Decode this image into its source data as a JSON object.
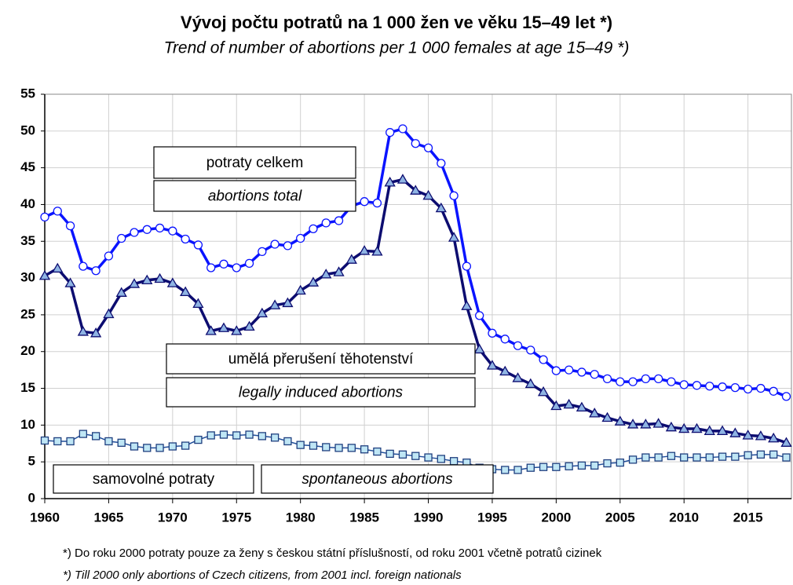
{
  "chart_data": {
    "type": "line",
    "title": "Vývoj počtu potratů na 1 000 žen ve věku 15–49 let *)",
    "subtitle": "Trend of number of abortions per 1 000 females at age 15–49 *)",
    "x": [
      1960,
      1961,
      1962,
      1963,
      1964,
      1965,
      1966,
      1967,
      1968,
      1969,
      1970,
      1971,
      1972,
      1973,
      1974,
      1975,
      1976,
      1977,
      1978,
      1979,
      1980,
      1981,
      1982,
      1983,
      1984,
      1985,
      1986,
      1987,
      1988,
      1989,
      1990,
      1991,
      1992,
      1993,
      1994,
      1995,
      1996,
      1997,
      1998,
      1999,
      2000,
      2001,
      2002,
      2003,
      2004,
      2005,
      2006,
      2007,
      2008,
      2009,
      2010,
      2011,
      2012,
      2013,
      2014,
      2015,
      2016,
      2017,
      2018
    ],
    "series": [
      {
        "name": "potraty celkem",
        "color": "#0a14ff",
        "values": [
          38.3,
          39.1,
          37.1,
          31.6,
          31.0,
          33.0,
          35.4,
          36.2,
          36.6,
          36.8,
          36.4,
          35.3,
          34.5,
          31.4,
          31.9,
          31.4,
          32.0,
          33.6,
          34.6,
          34.4,
          35.4,
          36.7,
          37.5,
          37.8,
          39.8,
          40.4,
          40.2,
          49.8,
          50.3,
          48.3,
          47.7,
          45.6,
          41.2,
          31.6,
          24.9,
          22.5,
          21.7,
          20.8,
          20.2,
          18.9,
          17.4,
          17.5,
          17.2,
          16.9,
          16.3,
          15.9,
          15.9,
          16.3,
          16.3,
          15.9,
          15.5,
          15.4,
          15.3,
          15.2,
          15.1,
          14.9,
          15.0,
          14.6,
          13.9
        ]
      },
      {
        "name": "umělá přerušení těhotenství",
        "color": "#0c0c70",
        "values": [
          30.3,
          31.3,
          29.3,
          22.7,
          22.5,
          25.1,
          28.0,
          29.2,
          29.7,
          29.9,
          29.3,
          28.1,
          26.5,
          22.8,
          23.2,
          22.8,
          23.4,
          25.2,
          26.3,
          26.6,
          28.3,
          29.4,
          30.5,
          30.8,
          32.5,
          33.7,
          33.6,
          43.0,
          43.4,
          41.9,
          41.2,
          39.5,
          35.5,
          26.2,
          20.3,
          18.1,
          17.3,
          16.4,
          15.6,
          14.5,
          12.6,
          12.8,
          12.4,
          11.6,
          11.0,
          10.5,
          10.1,
          10.1,
          10.2,
          9.7,
          9.5,
          9.5,
          9.2,
          9.2,
          8.9,
          8.6,
          8.5,
          8.2,
          7.6
        ]
      },
      {
        "name": "samovolné potraty",
        "color": "#1f4e9a",
        "values": [
          7.9,
          7.8,
          7.8,
          8.8,
          8.5,
          7.8,
          7.6,
          7.1,
          6.9,
          6.9,
          7.1,
          7.2,
          8.0,
          8.6,
          8.7,
          8.6,
          8.7,
          8.5,
          8.3,
          7.8,
          7.3,
          7.2,
          7.0,
          6.9,
          6.9,
          6.7,
          6.4,
          6.1,
          6.0,
          5.8,
          5.6,
          5.4,
          5.1,
          4.9,
          4.2,
          4.0,
          3.9,
          3.9,
          4.2,
          4.3,
          4.3,
          4.4,
          4.5,
          4.5,
          4.8,
          4.9,
          5.3,
          5.6,
          5.6,
          5.8,
          5.6,
          5.6,
          5.6,
          5.7,
          5.7,
          5.9,
          6.0,
          6.0,
          5.6
        ]
      }
    ],
    "annotations": [
      "potraty celkem",
      "abortions total",
      "umělá přerušení těhotenství",
      "legally induced abortions",
      "samovolné potraty",
      "spontaneous abortions"
    ],
    "footnotes": [
      "*) Do roku 2000 potraty pouze za ženy s českou státní příslušností, od roku 2001 včetně potratů cizinek",
      "*) Till 2000 only abortions of Czech citizens, from 2001 incl. foreign nationals"
    ],
    "xlim": [
      1960,
      2018.4
    ],
    "xticks": [
      1960,
      1965,
      1970,
      1975,
      1980,
      1985,
      1990,
      1995,
      2000,
      2005,
      2010,
      2015
    ],
    "ylim": [
      0,
      55
    ],
    "yticks": [
      0,
      5,
      10,
      15,
      20,
      25,
      30,
      35,
      40,
      45,
      50,
      55
    ],
    "grid": true
  }
}
